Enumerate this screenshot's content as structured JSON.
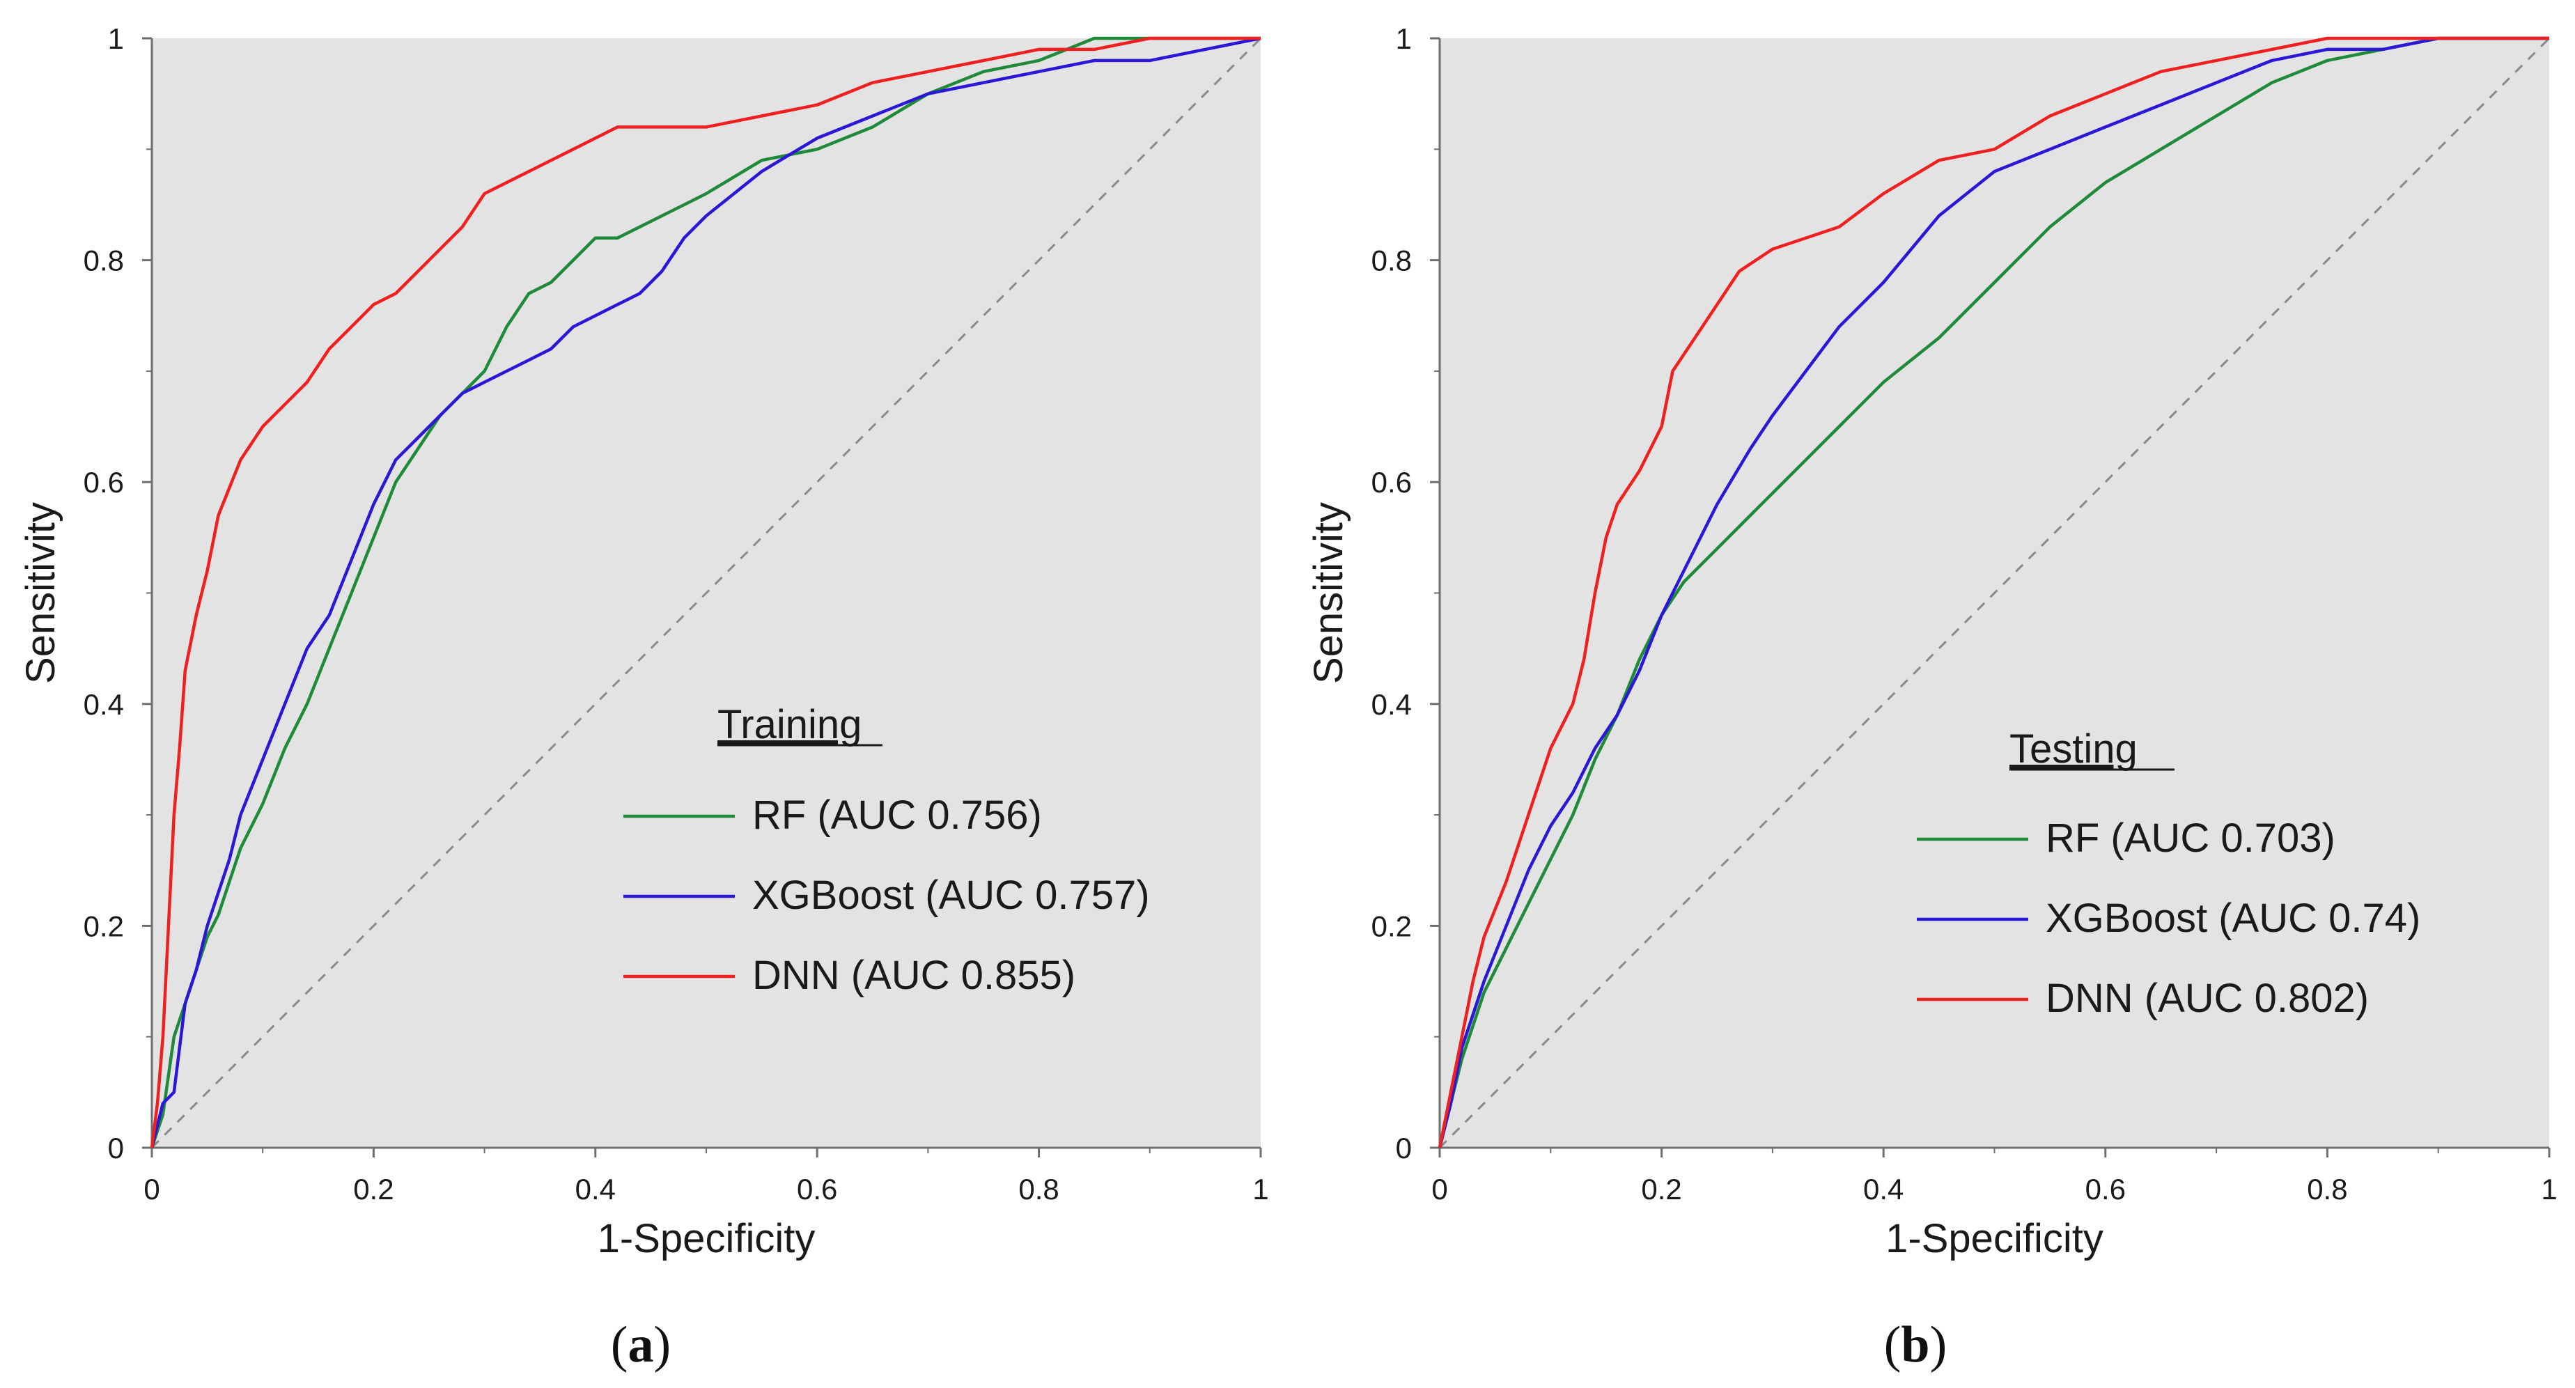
{
  "chart_data": [
    {
      "type": "line",
      "panel_caption": {
        "open": "(",
        "letter": "a",
        "close": ")"
      },
      "xlabel": "1-Specificity",
      "ylabel": "Sensitivity",
      "xlim": [
        0,
        1
      ],
      "ylim": [
        0,
        1
      ],
      "xticks": [
        "0",
        "0.2",
        "0.4",
        "0.6",
        "0.8",
        "1"
      ],
      "yticks": [
        "0",
        "0.2",
        "0.4",
        "0.6",
        "0.8",
        "1"
      ],
      "grid": false,
      "legend_title": "Training",
      "legend_position": "center-right",
      "reference_line": "diagonal",
      "series": [
        {
          "name": "RF",
          "legend_label": "RF (AUC 0.756)",
          "auc": 0.756,
          "color": "#1f8a3a",
          "x": [
            0,
            0.01,
            0.02,
            0.03,
            0.04,
            0.05,
            0.06,
            0.07,
            0.08,
            0.1,
            0.12,
            0.14,
            0.16,
            0.18,
            0.2,
            0.22,
            0.24,
            0.26,
            0.28,
            0.3,
            0.32,
            0.34,
            0.36,
            0.38,
            0.4,
            0.42,
            0.44,
            0.46,
            0.48,
            0.5,
            0.55,
            0.6,
            0.65,
            0.7,
            0.75,
            0.8,
            0.85,
            0.9,
            1.0
          ],
          "y": [
            0,
            0.03,
            0.1,
            0.13,
            0.16,
            0.19,
            0.21,
            0.24,
            0.27,
            0.31,
            0.36,
            0.4,
            0.45,
            0.5,
            0.55,
            0.6,
            0.63,
            0.66,
            0.68,
            0.7,
            0.74,
            0.77,
            0.78,
            0.8,
            0.82,
            0.82,
            0.83,
            0.84,
            0.85,
            0.86,
            0.89,
            0.9,
            0.92,
            0.95,
            0.97,
            0.98,
            1.0,
            1.0,
            1.0
          ]
        },
        {
          "name": "XGBoost",
          "legend_label": "XGBoost (AUC 0.757)",
          "auc": 0.757,
          "color": "#2b17d6",
          "x": [
            0,
            0.01,
            0.02,
            0.03,
            0.04,
            0.05,
            0.06,
            0.07,
            0.08,
            0.1,
            0.12,
            0.14,
            0.16,
            0.18,
            0.2,
            0.22,
            0.24,
            0.26,
            0.28,
            0.3,
            0.32,
            0.34,
            0.36,
            0.38,
            0.4,
            0.42,
            0.44,
            0.46,
            0.48,
            0.5,
            0.55,
            0.6,
            0.65,
            0.7,
            0.75,
            0.8,
            0.85,
            0.9,
            0.95,
            1.0
          ],
          "y": [
            0,
            0.04,
            0.05,
            0.13,
            0.16,
            0.2,
            0.23,
            0.26,
            0.3,
            0.35,
            0.4,
            0.45,
            0.48,
            0.53,
            0.58,
            0.62,
            0.64,
            0.66,
            0.68,
            0.69,
            0.7,
            0.71,
            0.72,
            0.74,
            0.75,
            0.76,
            0.77,
            0.79,
            0.82,
            0.84,
            0.88,
            0.91,
            0.93,
            0.95,
            0.96,
            0.97,
            0.98,
            0.98,
            0.99,
            1.0
          ]
        },
        {
          "name": "DNN",
          "legend_label": "DNN (AUC 0.855)",
          "auc": 0.855,
          "color": "#ee2020",
          "x": [
            0,
            0.005,
            0.01,
            0.015,
            0.02,
            0.025,
            0.03,
            0.04,
            0.05,
            0.06,
            0.08,
            0.1,
            0.12,
            0.14,
            0.16,
            0.18,
            0.2,
            0.22,
            0.24,
            0.26,
            0.28,
            0.3,
            0.32,
            0.34,
            0.36,
            0.38,
            0.4,
            0.42,
            0.45,
            0.5,
            0.55,
            0.6,
            0.65,
            0.7,
            0.75,
            0.8,
            0.85,
            0.9,
            0.95,
            1.0
          ],
          "y": [
            0,
            0.04,
            0.1,
            0.2,
            0.3,
            0.36,
            0.43,
            0.48,
            0.52,
            0.57,
            0.62,
            0.65,
            0.67,
            0.69,
            0.72,
            0.74,
            0.76,
            0.77,
            0.79,
            0.81,
            0.83,
            0.86,
            0.87,
            0.88,
            0.89,
            0.9,
            0.91,
            0.92,
            0.92,
            0.92,
            0.93,
            0.94,
            0.96,
            0.97,
            0.98,
            0.99,
            0.99,
            1.0,
            1.0,
            1.0
          ]
        }
      ]
    },
    {
      "type": "line",
      "panel_caption": {
        "open": "(",
        "letter": "b",
        "close": ")"
      },
      "xlabel": "1-Specificity",
      "ylabel": "Sensitivity",
      "xlim": [
        0,
        1
      ],
      "ylim": [
        0,
        1
      ],
      "xticks": [
        "0",
        "0.2",
        "0.4",
        "0.6",
        "0.8",
        "1"
      ],
      "yticks": [
        "0",
        "0.2",
        "0.4",
        "0.6",
        "0.8",
        "1"
      ],
      "grid": false,
      "legend_title": "Testing",
      "legend_position": "center-right",
      "reference_line": "diagonal",
      "series": [
        {
          "name": "RF",
          "legend_label": "RF (AUC 0.703)",
          "auc": 0.703,
          "color": "#1f8a3a",
          "x": [
            0,
            0.01,
            0.02,
            0.04,
            0.06,
            0.08,
            0.1,
            0.12,
            0.14,
            0.16,
            0.18,
            0.2,
            0.22,
            0.25,
            0.28,
            0.3,
            0.33,
            0.36,
            0.4,
            0.45,
            0.5,
            0.55,
            0.6,
            0.65,
            0.7,
            0.75,
            0.8,
            0.85,
            0.9,
            0.95,
            1.0
          ],
          "y": [
            0,
            0.04,
            0.08,
            0.14,
            0.18,
            0.22,
            0.26,
            0.3,
            0.35,
            0.39,
            0.44,
            0.48,
            0.51,
            0.54,
            0.57,
            0.59,
            0.62,
            0.65,
            0.69,
            0.73,
            0.78,
            0.83,
            0.87,
            0.9,
            0.93,
            0.96,
            0.98,
            0.99,
            1.0,
            1.0,
            1.0
          ]
        },
        {
          "name": "XGBoost",
          "legend_label": "XGBoost (AUC 0.74)",
          "auc": 0.74,
          "color": "#2b17d6",
          "x": [
            0,
            0.01,
            0.02,
            0.04,
            0.06,
            0.08,
            0.1,
            0.12,
            0.14,
            0.16,
            0.18,
            0.2,
            0.22,
            0.25,
            0.28,
            0.3,
            0.33,
            0.36,
            0.4,
            0.45,
            0.5,
            0.55,
            0.6,
            0.65,
            0.7,
            0.75,
            0.8,
            0.85,
            0.9,
            0.95,
            1.0
          ],
          "y": [
            0,
            0.04,
            0.09,
            0.15,
            0.2,
            0.25,
            0.29,
            0.32,
            0.36,
            0.39,
            0.43,
            0.48,
            0.52,
            0.58,
            0.63,
            0.66,
            0.7,
            0.74,
            0.78,
            0.84,
            0.88,
            0.9,
            0.92,
            0.94,
            0.96,
            0.98,
            0.99,
            0.99,
            1.0,
            1.0,
            1.0
          ]
        },
        {
          "name": "DNN",
          "legend_label": "DNN (AUC 0.802)",
          "auc": 0.802,
          "color": "#ee2020",
          "x": [
            0,
            0.01,
            0.02,
            0.03,
            0.04,
            0.06,
            0.08,
            0.1,
            0.12,
            0.13,
            0.14,
            0.15,
            0.16,
            0.18,
            0.2,
            0.21,
            0.23,
            0.25,
            0.27,
            0.3,
            0.33,
            0.36,
            0.4,
            0.45,
            0.5,
            0.55,
            0.6,
            0.65,
            0.7,
            0.75,
            0.8,
            0.85,
            0.9,
            1.0
          ],
          "y": [
            0,
            0.05,
            0.1,
            0.15,
            0.19,
            0.24,
            0.3,
            0.36,
            0.4,
            0.44,
            0.5,
            0.55,
            0.58,
            0.61,
            0.65,
            0.7,
            0.73,
            0.76,
            0.79,
            0.81,
            0.82,
            0.83,
            0.86,
            0.89,
            0.9,
            0.93,
            0.95,
            0.97,
            0.98,
            0.99,
            1.0,
            1.0,
            1.0,
            1.0
          ]
        }
      ]
    }
  ]
}
